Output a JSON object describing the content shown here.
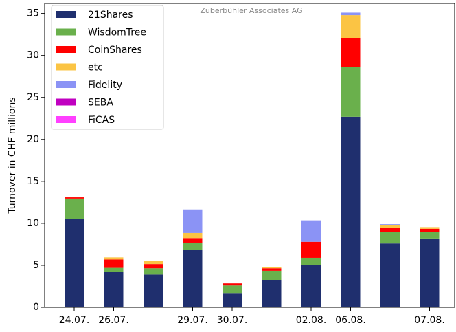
{
  "chart_data": {
    "type": "stacked_bar",
    "annotation": "Zuberbühler Associates AG",
    "ylabel": "Turnover in CHF millions",
    "categories": [
      "24.07.",
      "26.07.",
      null,
      "29.07.",
      "30.07.",
      null,
      "02.08.",
      "06.08.",
      null,
      "07.08."
    ],
    "series": [
      {
        "name": "21Shares",
        "color": "#1f2f6e",
        "values": [
          10.5,
          4.2,
          3.9,
          6.8,
          1.7,
          3.2,
          5.0,
          22.7,
          7.6,
          8.2
        ]
      },
      {
        "name": "WisdomTree",
        "color": "#6ab04c",
        "values": [
          2.45,
          0.5,
          0.75,
          0.9,
          0.9,
          1.15,
          0.9,
          5.9,
          1.4,
          0.75
        ]
      },
      {
        "name": "CoinShares",
        "color": "#ff0000",
        "values": [
          0.15,
          1.0,
          0.5,
          0.55,
          0.25,
          0.3,
          1.9,
          3.45,
          0.5,
          0.4
        ]
      },
      {
        "name": "etc",
        "color": "#fbc444",
        "values": [
          0.05,
          0.25,
          0.35,
          0.6,
          0,
          0.1,
          0,
          2.75,
          0.3,
          0.2
        ]
      },
      {
        "name": "Fidelity",
        "color": "#8b93f5",
        "values": [
          0,
          0,
          0,
          2.8,
          0,
          0,
          2.55,
          0.3,
          0.1,
          0
        ]
      },
      {
        "name": "SEBA",
        "color": "#c000c0",
        "values": [
          0,
          0,
          0,
          0,
          0,
          0,
          0,
          0,
          0,
          0
        ]
      },
      {
        "name": "FiCAS",
        "color": "#ff40ff",
        "values": [
          0,
          0,
          0,
          0,
          0,
          0,
          0,
          0,
          0,
          0
        ]
      }
    ],
    "ylim": [
      0,
      36.2
    ],
    "yticks": [
      0,
      5,
      10,
      15,
      20,
      25,
      30,
      35
    ],
    "legend": "upper left"
  }
}
